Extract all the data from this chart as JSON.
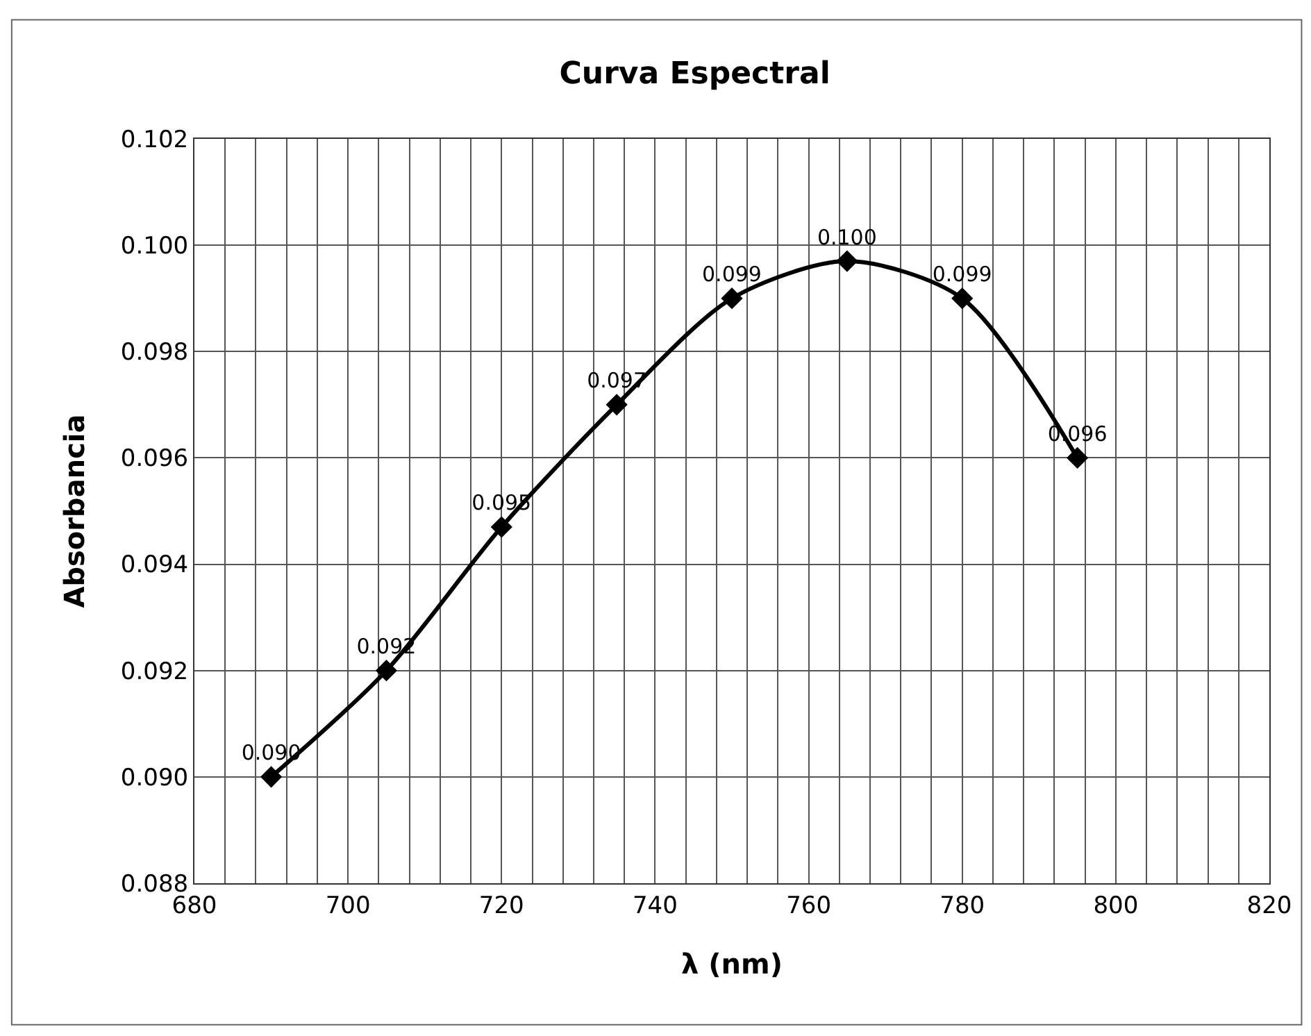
{
  "chart_data": {
    "type": "line",
    "title": "Curva Espectral",
    "xlabel": "λ (nm)",
    "ylabel": "Absorbancia",
    "x": [
      690,
      705,
      720,
      735,
      750,
      765,
      780,
      795
    ],
    "series": [
      {
        "color": "#000000",
        "values": [
          0.09,
          0.092,
          0.0947,
          0.097,
          0.099,
          0.0997,
          0.099,
          0.096
        ],
        "value_labels": [
          "0.090",
          "0.092",
          "0.095",
          "0.097",
          "0.099",
          "0.100",
          "0.099",
          "0.096"
        ]
      }
    ],
    "xlim": [
      680,
      820
    ],
    "xticks": [
      680,
      {
        "value": 684,
        "label": null
      },
      {
        "value": 688,
        "label": null
      },
      {
        "value": 692,
        "label": null
      },
      {
        "value": 696,
        "label": null
      },
      700,
      {
        "value": 704,
        "label": null
      },
      {
        "value": 708,
        "label": null
      },
      {
        "value": 712,
        "label": null
      },
      {
        "value": 716,
        "label": null
      },
      720,
      {
        "value": 724,
        "label": null
      },
      {
        "value": 728,
        "label": null
      },
      {
        "value": 732,
        "label": null
      },
      {
        "value": 736,
        "label": null
      },
      740,
      {
        "value": 744,
        "label": null
      },
      {
        "value": 748,
        "label": null
      },
      {
        "value": 752,
        "label": null
      },
      {
        "value": 756,
        "label": null
      },
      760,
      {
        "value": 764,
        "label": null
      },
      {
        "value": 768,
        "label": null
      },
      {
        "value": 772,
        "label": null
      },
      {
        "value": 776,
        "label": null
      },
      780,
      {
        "value": 784,
        "label": null
      },
      {
        "value": 788,
        "label": null
      },
      {
        "value": 792,
        "label": null
      },
      {
        "value": 796,
        "label": null
      },
      800,
      {
        "value": 804,
        "label": null
      },
      {
        "value": 808,
        "label": null
      },
      {
        "value": 812,
        "label": null
      },
      {
        "value": 816,
        "label": null
      },
      820
    ],
    "ylim": [
      0.088,
      0.102
    ],
    "yticks": [
      {
        "value": 0.088,
        "label": "0.088"
      },
      {
        "value": 0.09,
        "label": "0.090"
      },
      {
        "value": 0.092,
        "label": "0.092"
      },
      {
        "value": 0.094,
        "label": "0.094"
      },
      {
        "value": 0.096,
        "label": "0.096"
      },
      {
        "value": 0.098,
        "label": "0.098"
      },
      {
        "value": 0.1,
        "label": "0.100"
      },
      {
        "value": 0.102,
        "label": "0.102"
      }
    ],
    "grid": true,
    "marker": "diamond",
    "line_style": "solid"
  }
}
